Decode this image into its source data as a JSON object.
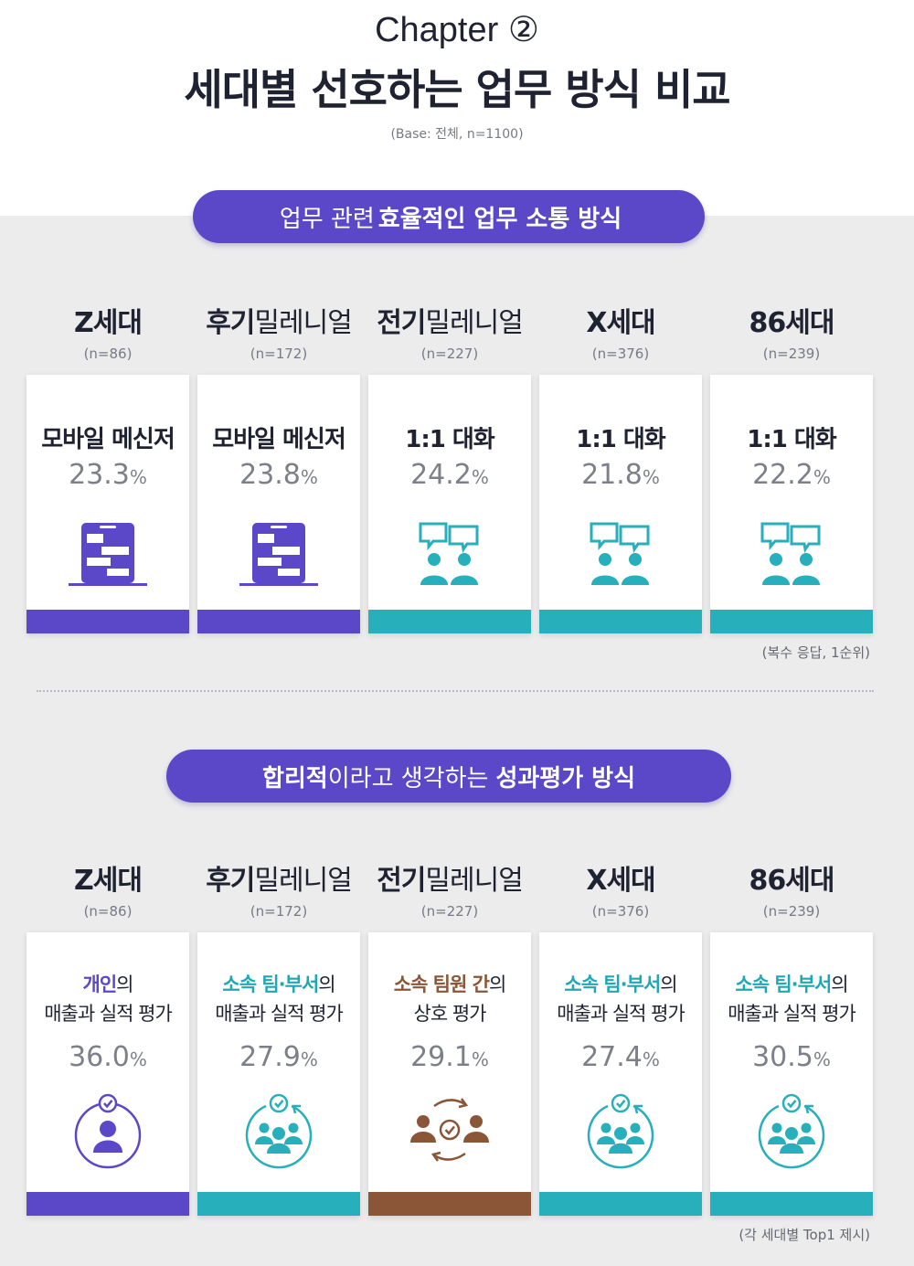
{
  "header": {
    "chapter": "Chapter ②",
    "title": "세대별 선호하는 업무 방식 비교",
    "base": "(Base: 전체, n=1100)"
  },
  "colors": {
    "purple": "#5b48c9",
    "teal": "#27afbb",
    "brown": "#8a5637"
  },
  "section1": {
    "pill": {
      "pre": "업무 관련",
      "bold": "효율적인 업무 소통 방식"
    },
    "generations": [
      {
        "bold": "Z세대",
        "thin": "",
        "n": "(n=86)"
      },
      {
        "bold": "후기",
        "thin": "밀레니얼",
        "n": "(n=172)"
      },
      {
        "bold": "전기",
        "thin": "밀레니얼",
        "n": "(n=227)"
      },
      {
        "bold": "X세대",
        "thin": "",
        "n": "(n=376)"
      },
      {
        "bold": "86세대",
        "thin": "",
        "n": "(n=239)"
      }
    ],
    "cards": [
      {
        "label": "모바일 메신저",
        "value": "23.3",
        "unit": "%",
        "icon": "mobile-messenger-icon",
        "color": "purple"
      },
      {
        "label": "모바일 메신저",
        "value": "23.8",
        "unit": "%",
        "icon": "mobile-messenger-icon",
        "color": "purple"
      },
      {
        "label": "1:1 대화",
        "value": "24.2",
        "unit": "%",
        "icon": "conversation-icon",
        "color": "teal"
      },
      {
        "label": "1:1 대화",
        "value": "21.8",
        "unit": "%",
        "icon": "conversation-icon",
        "color": "teal"
      },
      {
        "label": "1:1 대화",
        "value": "22.2",
        "unit": "%",
        "icon": "conversation-icon",
        "color": "teal"
      }
    ],
    "note": "(복수 응답, 1순위)"
  },
  "section2": {
    "pill": {
      "bold1": "합리적",
      "mid": "이라고 생각하는",
      "bold2": "성과평가 방식"
    },
    "generations": [
      {
        "bold": "Z세대",
        "thin": "",
        "n": "(n=86)"
      },
      {
        "bold": "후기",
        "thin": "밀레니얼",
        "n": "(n=172)"
      },
      {
        "bold": "전기",
        "thin": "밀레니얼",
        "n": "(n=227)"
      },
      {
        "bold": "X세대",
        "thin": "",
        "n": "(n=376)"
      },
      {
        "bold": "86세대",
        "thin": "",
        "n": "(n=239)"
      }
    ],
    "cards": [
      {
        "bold": "개인",
        "suffix": "의",
        "line2": "매출과 실적 평가",
        "value": "36.0",
        "unit": "%",
        "icon": "individual-evaluation-icon",
        "color": "purple"
      },
      {
        "bold": "소속 팀·부서",
        "suffix": "의",
        "line2": "매출과 실적 평가",
        "value": "27.9",
        "unit": "%",
        "icon": "team-evaluation-icon",
        "color": "teal"
      },
      {
        "bold": "소속 팀원 간",
        "suffix": "의",
        "line2": "상호 평가",
        "value": "29.1",
        "unit": "%",
        "icon": "peer-evaluation-icon",
        "color": "brown"
      },
      {
        "bold": "소속 팀·부서",
        "suffix": "의",
        "line2": "매출과 실적 평가",
        "value": "27.4",
        "unit": "%",
        "icon": "team-evaluation-icon",
        "color": "teal"
      },
      {
        "bold": "소속 팀·부서",
        "suffix": "의",
        "line2": "매출과 실적 평가",
        "value": "30.5",
        "unit": "%",
        "icon": "team-evaluation-icon",
        "color": "teal"
      }
    ],
    "note": "(각 세대별 Top1 제시)"
  }
}
